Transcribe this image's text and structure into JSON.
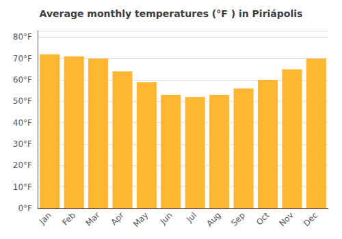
{
  "chart_data": {
    "type": "bar",
    "title": "Average monthly temperatures (°F ) in Piriápolis",
    "categories": [
      "Jan",
      "Feb",
      "Mar",
      "Apr",
      "May",
      "Jun",
      "Jul",
      "Aug",
      "Sep",
      "Oct",
      "Nov",
      "Dec"
    ],
    "values": [
      72,
      71,
      70,
      64,
      59,
      53,
      52,
      53,
      56,
      60,
      65,
      70
    ],
    "color": "#FFB733",
    "ylim": [
      0,
      83
    ],
    "yticks": [
      {
        "value": 0,
        "label": "0°F"
      },
      {
        "value": 10,
        "label": "10°F"
      },
      {
        "value": 20,
        "label": "20°F"
      },
      {
        "value": 30,
        "label": "30°F"
      },
      {
        "value": 40,
        "label": "40°F"
      },
      {
        "value": 50,
        "label": "50°F"
      },
      {
        "value": 60,
        "label": "60°F"
      },
      {
        "value": 70,
        "label": "70°F"
      },
      {
        "value": 80,
        "label": "80°F"
      }
    ],
    "grid": true
  }
}
